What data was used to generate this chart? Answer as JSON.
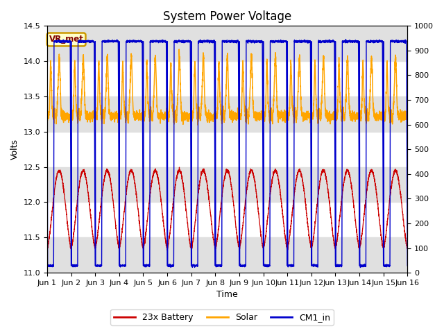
{
  "title": "System Power Voltage",
  "xlabel": "Time",
  "ylabel_left": "Volts",
  "ylim_left": [
    11.0,
    14.5
  ],
  "ylim_right": [
    0,
    1000
  ],
  "yticks_left": [
    11.0,
    11.5,
    12.0,
    12.5,
    13.0,
    13.5,
    14.0,
    14.5
  ],
  "yticks_right": [
    0,
    100,
    200,
    300,
    400,
    500,
    600,
    700,
    800,
    900,
    1000
  ],
  "xticklabels": [
    "Jun 1",
    "Jun 2",
    "Jun 3",
    "Jun 4",
    "Jun 5",
    "Jun 6",
    "Jun 7",
    "Jun 8",
    "Jun 9",
    "Jun 10",
    "Jun 11",
    "Jun 12",
    "Jun 13",
    "Jun 14",
    "Jun 15",
    "Jun 16"
  ],
  "legend_labels": [
    "23x Battery",
    "Solar",
    "CM1_in"
  ],
  "legend_colors": [
    "#cc0000",
    "#ffa500",
    "#0000cc"
  ],
  "vr_met_fg": "#800000",
  "vr_met_bg": "#ffffcc",
  "vr_met_edge": "#cc9900",
  "background_color": "#ffffff",
  "band_color": "#e0e0e0",
  "title_fontsize": 12,
  "label_fontsize": 9,
  "tick_fontsize": 8,
  "n_days": 15,
  "pts_per_day": 288
}
